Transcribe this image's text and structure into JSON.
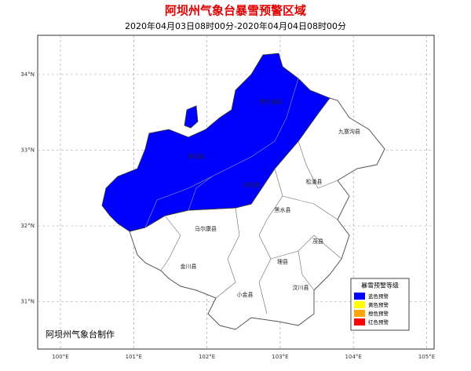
{
  "title": "阿坝州气象台暴雪预警区域",
  "subtitle": "2020年04月03日08时00分-2020年04月04日08时00分",
  "map": {
    "longitude_ticks": [
      "100°E",
      "101°E",
      "102°E",
      "103°E",
      "104°E",
      "105°E"
    ],
    "latitude_ticks": [
      "34°N",
      "33°N",
      "32°N",
      "31°N"
    ],
    "counties": [
      "若尔盖县",
      "阿坝县",
      "红原县",
      "九寨沟县",
      "松潘县",
      "黑水县",
      "马尔康县",
      "茂县",
      "理县",
      "金川县",
      "小金县",
      "汶川县"
    ]
  },
  "legend": {
    "title": "暴雪预警等级",
    "items": [
      {
        "label": "蓝色预警",
        "color": "#0000ff"
      },
      {
        "label": "黄色预警",
        "color": "#ffff00"
      },
      {
        "label": "橙色预警",
        "color": "#ffa500"
      },
      {
        "label": "红色预警",
        "color": "#ff0000"
      }
    ]
  },
  "footer": "阿坝州气象台制作"
}
